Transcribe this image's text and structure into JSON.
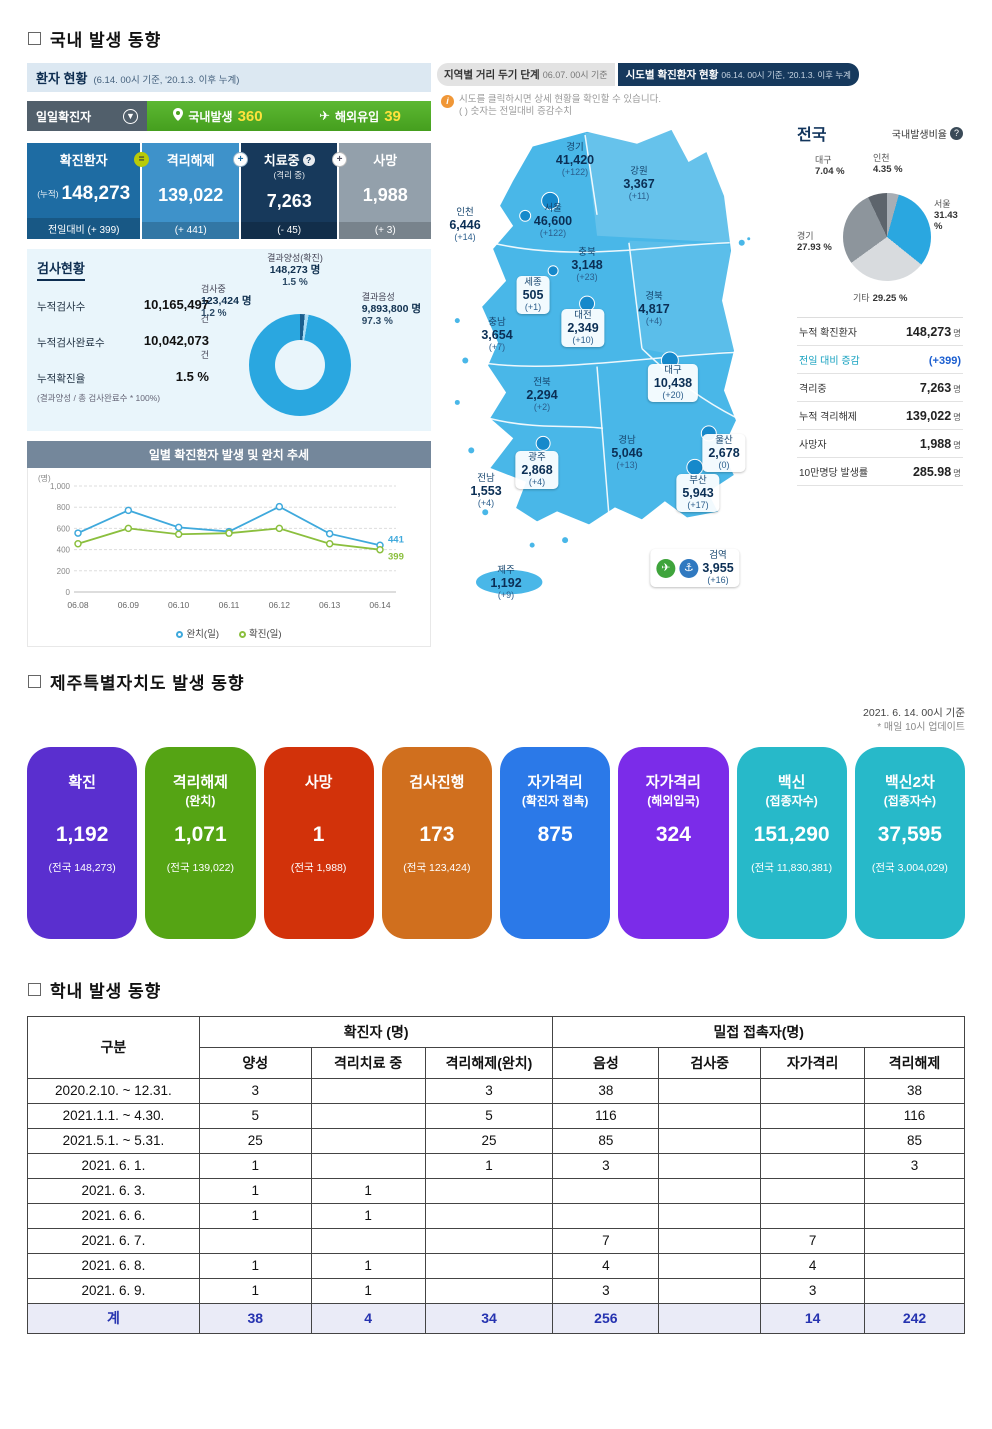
{
  "sections": {
    "domestic": {
      "title": "국내 발생 동향"
    },
    "jeju": {
      "title": "제주특별자치도 발생 동향",
      "date_note_line1": "2021. 6. 14. 00시 기준",
      "date_note_line2": "* 매일 10시 업데이트"
    },
    "school": {
      "title": "학내 발생 동향"
    }
  },
  "patient_status": {
    "header_title": "환자 현황",
    "header_sub": "(6.14. 00시 기준, '20.1.3. 이후 누계)",
    "daily_tab": "일일확진자",
    "domestic_label": "국내발생",
    "domestic_value": "360",
    "overseas_label": "해외유입",
    "overseas_value": "39",
    "cards": [
      {
        "label": "확진환자",
        "sublabel": "(누적)",
        "value": "148,273",
        "delta_label": "전일대비",
        "delta": "(+ 399)",
        "color": "#1e6ca3"
      },
      {
        "label": "격리해제",
        "value": "139,022",
        "delta": "(+ 441)",
        "color": "#3e92ca"
      },
      {
        "label": "치료중",
        "sublabel": "(격리 중)",
        "value": "7,263",
        "delta": "(- 45)",
        "color": "#17395b"
      },
      {
        "label": "사망",
        "value": "1,988",
        "delta": "(+ 3)",
        "color": "#93a0ab"
      }
    ],
    "test_status": {
      "title": "검사현황",
      "rows": [
        {
          "label": "누적검사수",
          "value": "10,165,497",
          "unit": "건"
        },
        {
          "label": "누적검사완료수",
          "value": "10,042,073",
          "unit": "건"
        },
        {
          "label": "누적확진율",
          "value": "1.5 %",
          "unit": ""
        }
      ],
      "note": "(결과양성 / 총 검사완료수 * 100%)",
      "donut_labels": {
        "positive_name": "결과양성(확진)",
        "positive_value": "148,273 명",
        "positive_pct": "1.5 %",
        "testing_name": "검사중",
        "testing_value": "123,424 명",
        "testing_pct": "1.2 %",
        "negative_name": "결과음성",
        "negative_value": "9,893,800 명",
        "negative_pct": "97.3 %"
      }
    },
    "trend_chart_title": "일별 확진환자 발생 및 완치 추세"
  },
  "chart_data": [
    {
      "type": "line",
      "title": "일별 확진환자 발생 및 완치 추세",
      "x": [
        "06.08",
        "06.09",
        "06.10",
        "06.11",
        "06.12",
        "06.13",
        "06.14"
      ],
      "series": [
        {
          "name": "완치(일)",
          "color": "#3fa9dc",
          "values": [
            556,
            770,
            610,
            570,
            805,
            550,
            441
          ]
        },
        {
          "name": "확진(일)",
          "color": "#8bbf3e",
          "values": [
            455,
            600,
            545,
            555,
            600,
            455,
            399
          ]
        }
      ],
      "ylabel": "(명)",
      "ylim": [
        0,
        1000
      ],
      "yticks": [
        0,
        200,
        400,
        600,
        800,
        1000
      ],
      "end_labels": [
        "441",
        "399"
      ],
      "legend_position": "bottom",
      "grid": true
    },
    {
      "type": "pie",
      "title": "국내발생비율",
      "segments": [
        {
          "name": "인천",
          "value": 4.35,
          "color": "#a8aeb5"
        },
        {
          "name": "서울",
          "value": 31.43,
          "color": "#2aa7e0"
        },
        {
          "name": "기타",
          "value": 29.25,
          "color": "#d8dbde"
        },
        {
          "name": "경기",
          "value": 27.93,
          "color": "#8d959c"
        },
        {
          "name": "대구",
          "value": 7.04,
          "color": "#5d646c"
        }
      ]
    },
    {
      "type": "pie",
      "title": "검사현황",
      "segments": [
        {
          "name": "결과양성(확진)",
          "value": 1.5,
          "color": "#1a5e8e"
        },
        {
          "name": "검사중",
          "value": 1.2,
          "color": "#aadcf5"
        },
        {
          "name": "결과음성",
          "value": 97.3,
          "color": "#2aa7e0"
        }
      ]
    }
  ],
  "map_panel": {
    "tab_left": "지역별 거리 두기 단계",
    "tab_left_date": "06.07. 00시 기준",
    "tab_right": "시도별 확진환자 현황",
    "tab_right_date": "06.14. 00시 기준, '20.1.3. 이후 누계",
    "info_line1": "시도를 클릭하시면 상세 현황을 확인할 수 있습니다.",
    "info_line2": "( ) 숫자는 전일대비 증감수치",
    "regions": [
      {
        "name": "경기",
        "value": "41,420",
        "delta": "(+122)"
      },
      {
        "name": "강원",
        "value": "3,367",
        "delta": "(+11)"
      },
      {
        "name": "인천",
        "value": "6,446",
        "delta": "(+14)"
      },
      {
        "name": "서울",
        "value": "46,600",
        "delta": "(+122)"
      },
      {
        "name": "충북",
        "value": "3,148",
        "delta": "(+23)"
      },
      {
        "name": "세종",
        "value": "505",
        "delta": "(+1)"
      },
      {
        "name": "경북",
        "value": "4,817",
        "delta": "(+4)"
      },
      {
        "name": "충남",
        "value": "3,654",
        "delta": "(+7)"
      },
      {
        "name": "대전",
        "value": "2,349",
        "delta": "(+10)"
      },
      {
        "name": "대구",
        "value": "10,438",
        "delta": "(+20)"
      },
      {
        "name": "전북",
        "value": "2,294",
        "delta": "(+2)"
      },
      {
        "name": "경남",
        "value": "5,046",
        "delta": "(+13)"
      },
      {
        "name": "울산",
        "value": "2,678",
        "delta": "(0)"
      },
      {
        "name": "광주",
        "value": "2,868",
        "delta": "(+4)"
      },
      {
        "name": "부산",
        "value": "5,943",
        "delta": "(+17)"
      },
      {
        "name": "전남",
        "value": "1,553",
        "delta": "(+4)"
      },
      {
        "name": "검역",
        "value": "3,955",
        "delta": "(+16)"
      },
      {
        "name": "제주",
        "value": "1,192",
        "delta": "(+9)"
      }
    ]
  },
  "national_panel": {
    "title": "전국",
    "subtitle": "국내발생비율",
    "stats": [
      {
        "label": "누적 확진환자",
        "value": "148,273",
        "unit": "명"
      },
      {
        "label": "전일 대비 증감",
        "value": "(+399)",
        "unit": "",
        "highlight": true
      },
      {
        "label": "격리중",
        "value": "7,263",
        "unit": "명"
      },
      {
        "label": "누적 격리해제",
        "value": "139,022",
        "unit": "명"
      },
      {
        "label": "사망자",
        "value": "1,988",
        "unit": "명"
      },
      {
        "label": "10만명당 발생률",
        "value": "285.98",
        "unit": "명"
      }
    ]
  },
  "jeju_cards": [
    {
      "label": "확진",
      "label2": "",
      "value": "1,192",
      "sub": "(전국 148,273)",
      "color": "#5a2fcf"
    },
    {
      "label": "격리해제",
      "label2": "(완치)",
      "value": "1,071",
      "sub": "(전국 139,022)",
      "color": "#55a414"
    },
    {
      "label": "사망",
      "label2": "",
      "value": "1",
      "sub": "(전국 1,988)",
      "color": "#d2320a"
    },
    {
      "label": "검사진행",
      "label2": "",
      "value": "173",
      "sub": "(전국 123,424)",
      "color": "#d06f1e"
    },
    {
      "label": "자가격리",
      "label2": "(확진자 접촉)",
      "value": "875",
      "sub": "",
      "color": "#2b79e8"
    },
    {
      "label": "자가격리",
      "label2": "(해외입국)",
      "value": "324",
      "sub": "",
      "color": "#7b2ce9"
    },
    {
      "label": "백신",
      "label2": "(접종자수)",
      "value": "151,290",
      "sub": "(전국 11,830,381)",
      "color": "#27b9c9"
    },
    {
      "label": "백신2차",
      "label2": "(접종자수)",
      "value": "37,595",
      "sub": "(전국 3,004,029)",
      "color": "#27b9c9"
    }
  ],
  "school_table": {
    "col_group1": "구분",
    "col_group2": "확진자 (명)",
    "col_group3": "밀접 접촉자(명)",
    "sub_headers": [
      "양성",
      "격리치료 중",
      "격리해제(완치)",
      "음성",
      "검사중",
      "자가격리",
      "격리해제"
    ],
    "rows": [
      {
        "period": "2020.2.10.  ~ 12.31.",
        "cells": [
          "3",
          "",
          "3",
          "38",
          "",
          "",
          "38"
        ]
      },
      {
        "period": "2021.1.1.  ~  4.30.",
        "cells": [
          "5",
          "",
          "5",
          "116",
          "",
          "",
          "116"
        ]
      },
      {
        "period": "2021.5.1.  ~  5.31.",
        "cells": [
          "25",
          "",
          "25",
          "85",
          "",
          "",
          "85"
        ]
      },
      {
        "period": "2021. 6. 1.",
        "cells": [
          "1",
          "",
          "1",
          "3",
          "",
          "",
          "3"
        ]
      },
      {
        "period": "2021. 6. 3.",
        "cells": [
          "1",
          "1",
          "",
          "",
          "",
          "",
          ""
        ]
      },
      {
        "period": "2021. 6. 6.",
        "cells": [
          "1",
          "1",
          "",
          "",
          "",
          "",
          ""
        ]
      },
      {
        "period": "2021. 6. 7.",
        "cells": [
          "",
          "",
          "",
          "7",
          "",
          "7",
          ""
        ]
      },
      {
        "period": "2021. 6. 8.",
        "cells": [
          "1",
          "1",
          "",
          "4",
          "",
          "4",
          ""
        ]
      },
      {
        "period": "2021. 6. 9.",
        "cells": [
          "1",
          "1",
          "",
          "3",
          "",
          "3",
          ""
        ]
      }
    ],
    "total_row": {
      "period": "계",
      "cells": [
        "38",
        "4",
        "34",
        "256",
        "",
        "14",
        "242"
      ]
    }
  }
}
